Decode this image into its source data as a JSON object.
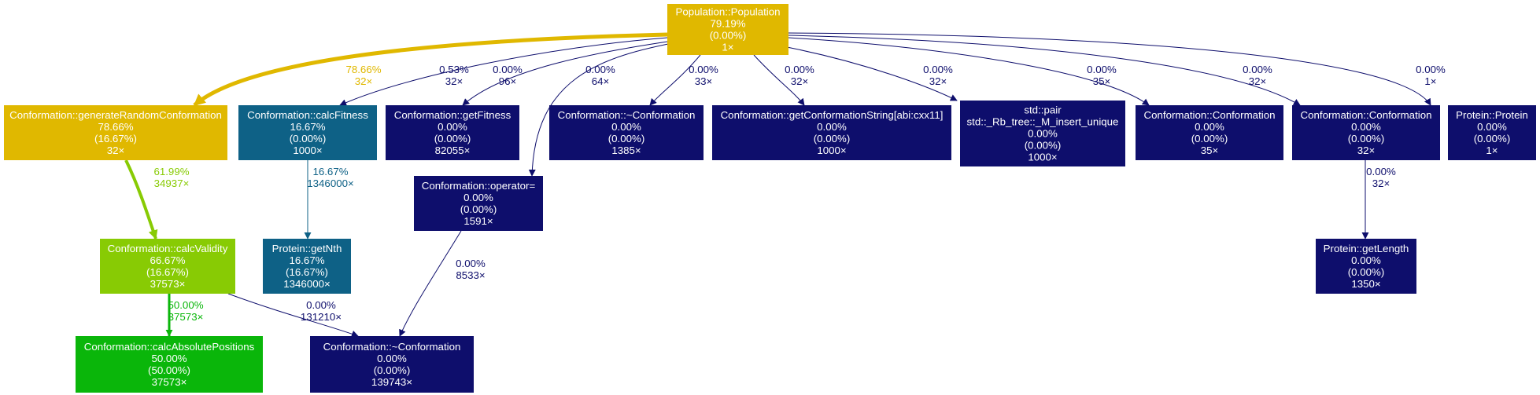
{
  "colors": {
    "yellow": "#e0b800",
    "lime": "#88cb04",
    "green": "#0ab60a",
    "teal": "#0e6186",
    "navy": "#0e0e6c",
    "node_text": "#ffffff"
  },
  "nodes": [
    {
      "id": "population",
      "lines": [
        "Population::Population",
        "79.19%",
        "(0.00%)",
        "1×"
      ],
      "color": "yellow"
    },
    {
      "id": "generateRandomConformation",
      "lines": [
        "Conformation::generateRandomConformation",
        "78.66%",
        "(16.67%)",
        "32×"
      ],
      "color": "yellow"
    },
    {
      "id": "calcFitness",
      "lines": [
        "Conformation::calcFitness",
        "16.67%",
        "(0.00%)",
        "1000×"
      ],
      "color": "teal"
    },
    {
      "id": "getFitness",
      "lines": [
        "Conformation::getFitness",
        "0.00%",
        "(0.00%)",
        "82055×"
      ],
      "color": "navy"
    },
    {
      "id": "destructor1",
      "lines": [
        "Conformation::~Conformation",
        "0.00%",
        "(0.00%)",
        "1385×"
      ],
      "color": "navy"
    },
    {
      "id": "getConformationString",
      "lines": [
        "Conformation::getConformationString[abi:cxx11]",
        "0.00%",
        "(0.00%)",
        "1000×"
      ],
      "color": "navy"
    },
    {
      "id": "stdpair",
      "lines": [
        "std::pair",
        "std::_Rb_tree::_M_insert_unique",
        "0.00%",
        "(0.00%)",
        "1000×"
      ],
      "color": "navy"
    },
    {
      "id": "conformation35",
      "lines": [
        "Conformation::Conformation",
        "0.00%",
        "(0.00%)",
        "35×"
      ],
      "color": "navy"
    },
    {
      "id": "conformation32",
      "lines": [
        "Conformation::Conformation",
        "0.00%",
        "(0.00%)",
        "32×"
      ],
      "color": "navy"
    },
    {
      "id": "protein",
      "lines": [
        "Protein::Protein",
        "0.00%",
        "(0.00%)",
        "1×"
      ],
      "color": "navy"
    },
    {
      "id": "operatorEq",
      "lines": [
        "Conformation::operator=",
        "0.00%",
        "(0.00%)",
        "1591×"
      ],
      "color": "navy"
    },
    {
      "id": "calcValidity",
      "lines": [
        "Conformation::calcValidity",
        "66.67%",
        "(16.67%)",
        "37573×"
      ],
      "color": "lime"
    },
    {
      "id": "getNth",
      "lines": [
        "Protein::getNth",
        "16.67%",
        "(16.67%)",
        "1346000×"
      ],
      "color": "teal"
    },
    {
      "id": "getLength",
      "lines": [
        "Protein::getLength",
        "0.00%",
        "(0.00%)",
        "1350×"
      ],
      "color": "navy"
    },
    {
      "id": "calcAbsolutePositions",
      "lines": [
        "Conformation::calcAbsolutePositions",
        "50.00%",
        "(50.00%)",
        "37573×"
      ],
      "color": "green"
    },
    {
      "id": "destructor2",
      "lines": [
        "Conformation::~Conformation",
        "0.00%",
        "(0.00%)",
        "139743×"
      ],
      "color": "navy"
    }
  ],
  "edges": [
    {
      "from": "population",
      "to": "generateRandomConformation",
      "pct": "78.66%",
      "calls": "32×",
      "color": "yellow",
      "width": 5
    },
    {
      "from": "population",
      "to": "calcFitness",
      "pct": "0.53%",
      "calls": "32×",
      "color": "navy",
      "width": 1
    },
    {
      "from": "population",
      "to": "getFitness",
      "pct": "0.00%",
      "calls": "96×",
      "color": "navy",
      "width": 1
    },
    {
      "from": "population",
      "to": "operatorEq",
      "pct": "0.00%",
      "calls": "64×",
      "color": "navy",
      "width": 1
    },
    {
      "from": "population",
      "to": "destructor1",
      "pct": "0.00%",
      "calls": "33×",
      "color": "navy",
      "width": 1
    },
    {
      "from": "population",
      "to": "getConformationString",
      "pct": "0.00%",
      "calls": "32×",
      "color": "navy",
      "width": 1
    },
    {
      "from": "population",
      "to": "stdpair",
      "pct": "0.00%",
      "calls": "32×",
      "color": "navy",
      "width": 1
    },
    {
      "from": "population",
      "to": "conformation35",
      "pct": "0.00%",
      "calls": "35×",
      "color": "navy",
      "width": 1
    },
    {
      "from": "population",
      "to": "conformation32",
      "pct": "0.00%",
      "calls": "32×",
      "color": "navy",
      "width": 1
    },
    {
      "from": "population",
      "to": "protein",
      "pct": "0.00%",
      "calls": "1×",
      "color": "navy",
      "width": 1
    },
    {
      "from": "generateRandomConformation",
      "to": "calcValidity",
      "pct": "61.99%",
      "calls": "34937×",
      "color": "lime",
      "width": 4
    },
    {
      "from": "calcFitness",
      "to": "getNth",
      "pct": "16.67%",
      "calls": "1346000×",
      "color": "teal",
      "width": 1
    },
    {
      "from": "operatorEq",
      "to": "destructor2",
      "pct": "0.00%",
      "calls": "8533×",
      "color": "navy",
      "width": 1
    },
    {
      "from": "conformation32",
      "to": "getLength",
      "pct": "0.00%",
      "calls": "32×",
      "color": "navy",
      "width": 1
    },
    {
      "from": "calcValidity",
      "to": "calcAbsolutePositions",
      "pct": "50.00%",
      "calls": "37573×",
      "color": "green",
      "width": 3
    },
    {
      "from": "calcValidity",
      "to": "destructor2",
      "pct": "0.00%",
      "calls": "131210×",
      "color": "navy",
      "width": 1
    }
  ]
}
